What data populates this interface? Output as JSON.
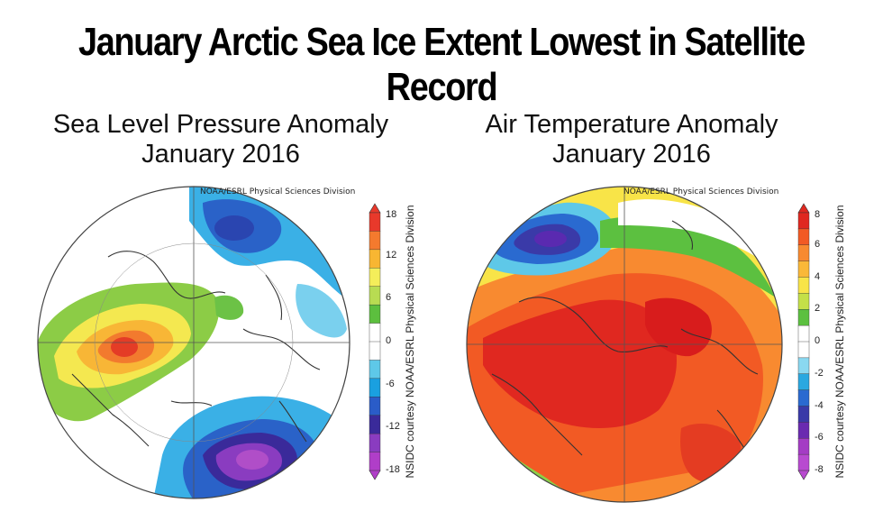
{
  "title": "January Arctic Sea Ice Extent Lowest in Satellite Record",
  "panels": [
    {
      "title_line1": "Sea Level Pressure Anomaly",
      "title_line2": "January 2016",
      "source": "NOAA/ESRL Physical Sciences Division",
      "side_credit": "NSIDC courtesy NOAA/ESRL Physical Sciences Division",
      "scale_labels": [
        "18",
        "12",
        "6",
        "0",
        "-6",
        "-12",
        "-18"
      ],
      "scale_colors": [
        "#e8392b",
        "#f47a2e",
        "#f8b632",
        "#f4ee5a",
        "#b8dc52",
        "#5cbf3e",
        "#ffffff",
        "#ffffff",
        "#5ec8e8",
        "#1aa0e0",
        "#2a5cc8",
        "#3a2a9a",
        "#8a3cc0",
        "#b03ec8"
      ]
    },
    {
      "title_line1": "Air Temperature Anomaly",
      "title_line2": "January 2016",
      "source": "NOAA/ESRL Physical Sciences Division",
      "side_credit": "NSIDC courtesy NOAA/ESRL Physical Sciences Division",
      "scale_labels": [
        "8",
        "6",
        "4",
        "2",
        "0",
        "-2",
        "-4",
        "-6",
        "-8"
      ],
      "scale_colors": [
        "#e02820",
        "#f25a24",
        "#f88a30",
        "#fab838",
        "#f8e448",
        "#c4e048",
        "#5cc040",
        "#ffffff",
        "#ffffff",
        "#8ad8f0",
        "#2aa8e0",
        "#2a6ad0",
        "#3a3aa8",
        "#6a2ab0",
        "#a43cc4",
        "#b84ad0"
      ]
    }
  ]
}
